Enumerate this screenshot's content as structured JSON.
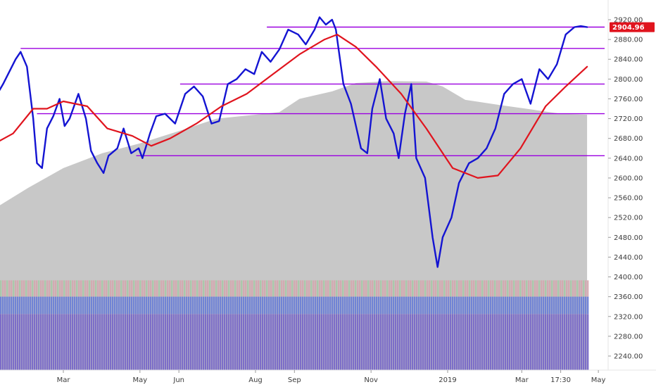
{
  "chart_data": {
    "type": "line",
    "title": "",
    "xlabel": "",
    "ylabel": "",
    "x_range": [
      "2018-01-02",
      "2019-05-31"
    ],
    "ylim": [
      2200,
      2950
    ],
    "y_ticks": [
      2240,
      2280,
      2320,
      2360,
      2400,
      2440,
      2480,
      2520,
      2560,
      2600,
      2640,
      2680,
      2720,
      2760,
      2800,
      2840,
      2880,
      2920
    ],
    "y_tick_labels": [
      "2240.00",
      "2280.00",
      "2320.00",
      "2360.00",
      "2400.00",
      "2440.00",
      "2480.00",
      "2520.00",
      "2560.00",
      "2600.00",
      "2640.00",
      "2680.00",
      "2720.00",
      "2760.00",
      "2800.00",
      "2840.00",
      "2880.00",
      "2920.00"
    ],
    "x_ticks": [
      {
        "date": "2018-03-01",
        "label": "Mar"
      },
      {
        "date": "2018-05-01",
        "label": "May"
      },
      {
        "date": "2018-06-01",
        "label": "Jun"
      },
      {
        "date": "2018-08-01",
        "label": "Aug"
      },
      {
        "date": "2018-09-01",
        "label": "Sep"
      },
      {
        "date": "2018-11-01",
        "label": "Nov"
      },
      {
        "date": "2019-01-01",
        "label": "2019"
      },
      {
        "date": "2019-03-01",
        "label": "Mar"
      },
      {
        "date": "2019-04-01",
        "label": "17:30"
      },
      {
        "date": "2019-05-01",
        "label": "May"
      }
    ],
    "last_value": 2904.96,
    "last_value_label": "2904.96",
    "series": [
      {
        "role": "price",
        "color": "#1414d2",
        "points": [
          [
            "2018-01-02",
            2746
          ],
          [
            "2018-01-12",
            2790
          ],
          [
            "2018-01-22",
            2840
          ],
          [
            "2018-01-26",
            2855
          ],
          [
            "2018-01-31",
            2825
          ],
          [
            "2018-02-05",
            2720
          ],
          [
            "2018-02-08",
            2630
          ],
          [
            "2018-02-12",
            2620
          ],
          [
            "2018-02-16",
            2700
          ],
          [
            "2018-02-21",
            2725
          ],
          [
            "2018-02-26",
            2760
          ],
          [
            "2018-03-02",
            2705
          ],
          [
            "2018-03-06",
            2720
          ],
          [
            "2018-03-13",
            2770
          ],
          [
            "2018-03-19",
            2720
          ],
          [
            "2018-03-23",
            2655
          ],
          [
            "2018-03-28",
            2630
          ],
          [
            "2018-04-02",
            2610
          ],
          [
            "2018-04-06",
            2645
          ],
          [
            "2018-04-13",
            2660
          ],
          [
            "2018-04-18",
            2700
          ],
          [
            "2018-04-24",
            2650
          ],
          [
            "2018-04-30",
            2660
          ],
          [
            "2018-05-03",
            2640
          ],
          [
            "2018-05-09",
            2690
          ],
          [
            "2018-05-14",
            2725
          ],
          [
            "2018-05-21",
            2730
          ],
          [
            "2018-05-29",
            2710
          ],
          [
            "2018-06-06",
            2770
          ],
          [
            "2018-06-13",
            2785
          ],
          [
            "2018-06-20",
            2765
          ],
          [
            "2018-06-27",
            2710
          ],
          [
            "2018-07-03",
            2715
          ],
          [
            "2018-07-10",
            2790
          ],
          [
            "2018-07-17",
            2800
          ],
          [
            "2018-07-24",
            2820
          ],
          [
            "2018-07-31",
            2810
          ],
          [
            "2018-08-06",
            2855
          ],
          [
            "2018-08-13",
            2835
          ],
          [
            "2018-08-20",
            2860
          ],
          [
            "2018-08-27",
            2900
          ],
          [
            "2018-09-04",
            2890
          ],
          [
            "2018-09-10",
            2870
          ],
          [
            "2018-09-17",
            2900
          ],
          [
            "2018-09-21",
            2925
          ],
          [
            "2018-09-26",
            2910
          ],
          [
            "2018-10-01",
            2920
          ],
          [
            "2018-10-04",
            2900
          ],
          [
            "2018-10-10",
            2790
          ],
          [
            "2018-10-16",
            2750
          ],
          [
            "2018-10-24",
            2660
          ],
          [
            "2018-10-29",
            2650
          ],
          [
            "2018-11-02",
            2740
          ],
          [
            "2018-11-08",
            2800
          ],
          [
            "2018-11-13",
            2720
          ],
          [
            "2018-11-19",
            2690
          ],
          [
            "2018-11-23",
            2640
          ],
          [
            "2018-11-28",
            2730
          ],
          [
            "2018-12-03",
            2790
          ],
          [
            "2018-12-07",
            2640
          ],
          [
            "2018-12-14",
            2600
          ],
          [
            "2018-12-20",
            2480
          ],
          [
            "2018-12-24",
            2420
          ],
          [
            "2018-12-28",
            2480
          ],
          [
            "2019-01-04",
            2520
          ],
          [
            "2019-01-10",
            2590
          ],
          [
            "2019-01-18",
            2630
          ],
          [
            "2019-01-25",
            2640
          ],
          [
            "2019-02-01",
            2660
          ],
          [
            "2019-02-08",
            2700
          ],
          [
            "2019-02-15",
            2770
          ],
          [
            "2019-02-22",
            2790
          ],
          [
            "2019-03-01",
            2800
          ],
          [
            "2019-03-08",
            2750
          ],
          [
            "2019-03-15",
            2820
          ],
          [
            "2019-03-22",
            2800
          ],
          [
            "2019-03-29",
            2830
          ],
          [
            "2019-04-05",
            2890
          ],
          [
            "2019-04-12",
            2905
          ],
          [
            "2019-04-17",
            2907
          ],
          [
            "2019-04-22",
            2905
          ]
        ]
      },
      {
        "role": "moving-average",
        "color": "#e0141e",
        "points": [
          [
            "2018-01-02",
            2665
          ],
          [
            "2018-01-20",
            2690
          ],
          [
            "2018-02-05",
            2740
          ],
          [
            "2018-02-16",
            2740
          ],
          [
            "2018-03-01",
            2755
          ],
          [
            "2018-03-20",
            2745
          ],
          [
            "2018-04-05",
            2700
          ],
          [
            "2018-04-25",
            2685
          ],
          [
            "2018-05-10",
            2665
          ],
          [
            "2018-05-25",
            2680
          ],
          [
            "2018-06-15",
            2710
          ],
          [
            "2018-07-05",
            2745
          ],
          [
            "2018-07-25",
            2770
          ],
          [
            "2018-08-15",
            2810
          ],
          [
            "2018-09-05",
            2850
          ],
          [
            "2018-09-25",
            2880
          ],
          [
            "2018-10-05",
            2890
          ],
          [
            "2018-10-20",
            2865
          ],
          [
            "2018-11-05",
            2825
          ],
          [
            "2018-11-25",
            2770
          ],
          [
            "2018-12-15",
            2700
          ],
          [
            "2019-01-05",
            2620
          ],
          [
            "2019-01-25",
            2600
          ],
          [
            "2019-02-10",
            2605
          ],
          [
            "2019-02-28",
            2660
          ],
          [
            "2019-03-20",
            2745
          ],
          [
            "2019-04-05",
            2785
          ],
          [
            "2019-04-22",
            2825
          ]
        ]
      }
    ],
    "horizontal_lines": [
      {
        "value": 2905,
        "start": "2018-08-10",
        "end": "2019-05-06",
        "color": "#9b00e0"
      },
      {
        "value": 2862,
        "start": "2018-01-26",
        "end": "2019-05-06",
        "color": "#9b00e0"
      },
      {
        "value": 2790,
        "start": "2018-06-02",
        "end": "2019-05-06",
        "color": "#9b00e0"
      },
      {
        "value": 2730,
        "start": "2018-02-08",
        "end": "2019-05-06",
        "color": "#9b00e0"
      },
      {
        "value": 2645,
        "start": "2018-04-28",
        "end": "2019-05-06",
        "color": "#9b00e0"
      }
    ],
    "volume_profile": {
      "fill_color": "#c8c8c8",
      "top_edge": [
        [
          "2018-01-02",
          2545
        ],
        [
          "2018-02-01",
          2580
        ],
        [
          "2018-03-01",
          2620
        ],
        [
          "2018-04-01",
          2650
        ],
        [
          "2018-05-01",
          2670
        ],
        [
          "2018-06-01",
          2695
        ],
        [
          "2018-07-01",
          2720
        ],
        [
          "2018-08-01",
          2728
        ],
        [
          "2018-08-20",
          2733
        ],
        [
          "2018-09-05",
          2760
        ],
        [
          "2018-10-01",
          2775
        ],
        [
          "2018-10-20",
          2792
        ],
        [
          "2018-11-15",
          2796
        ],
        [
          "2018-12-15",
          2795
        ],
        [
          "2018-12-28",
          2785
        ],
        [
          "2019-01-15",
          2758
        ],
        [
          "2019-02-10",
          2748
        ],
        [
          "2019-03-10",
          2738
        ],
        [
          "2019-04-01",
          2730
        ],
        [
          "2019-04-22",
          2728
        ]
      ],
      "bands": [
        {
          "role": "mixed-volume",
          "from": 2360,
          "to": 2393,
          "color_a": "#d4a6ae",
          "color_b": "#a6c8a6"
        },
        {
          "role": "blue-band",
          "from": 2325,
          "to": 2360,
          "color": "#6b7fd6"
        },
        {
          "role": "purple-band",
          "from": 2200,
          "to": 2325,
          "color": "#7868c8"
        }
      ]
    },
    "grid": false,
    "legend": "none"
  }
}
